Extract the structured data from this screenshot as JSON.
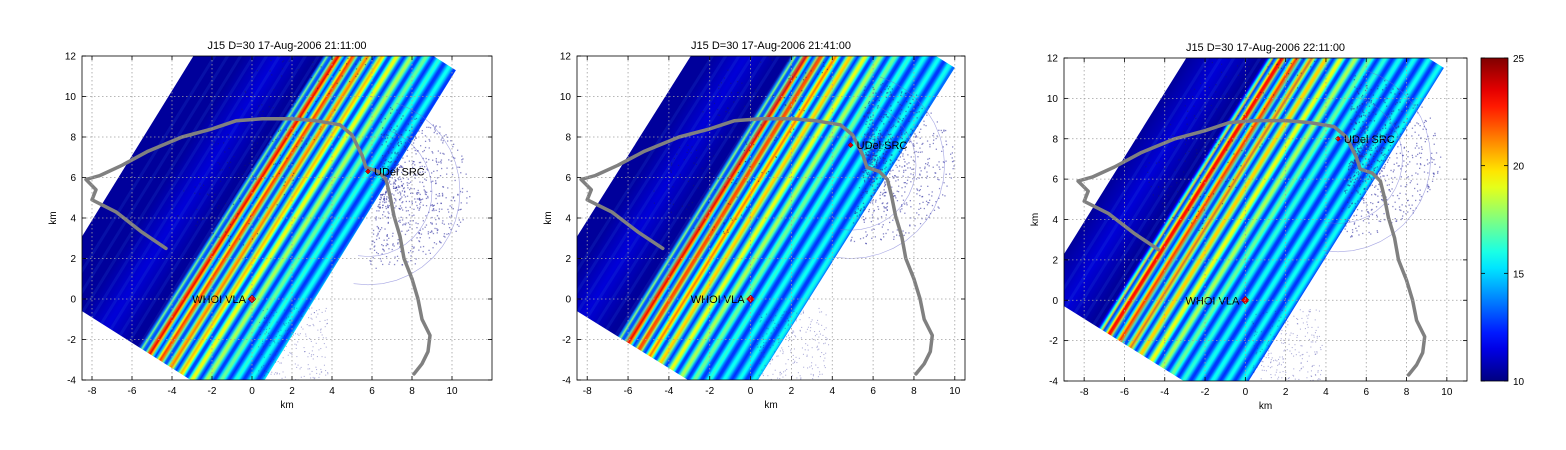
{
  "chart_data": [
    {
      "type": "heatmap",
      "title": "J15 D=30 17-Aug-2006 21:11:00",
      "xlabel": "km",
      "ylabel": "km",
      "xlim": [
        -8.5,
        12
      ],
      "ylim": [
        -4,
        12
      ],
      "xticks": [
        -8,
        -6,
        -4,
        -2,
        0,
        2,
        4,
        6,
        8,
        10
      ],
      "yticks": [
        -4,
        -2,
        0,
        2,
        4,
        6,
        8,
        10,
        12
      ],
      "grid": true,
      "sites": [
        {
          "label": "WHOI VLA",
          "x": 0,
          "y": 0
        },
        {
          "label": "UDel SRC",
          "x": 5.8,
          "y": 6.3
        }
      ],
      "front_offset": 0.0
    },
    {
      "type": "heatmap",
      "title": "J15 D=30 17-Aug-2006 21:41:00",
      "xlabel": "km",
      "ylabel": "km",
      "xlim": [
        -8.5,
        10.5
      ],
      "ylim": [
        -4,
        12
      ],
      "xticks": [
        -8,
        -6,
        -4,
        -2,
        0,
        2,
        4,
        6,
        8,
        10
      ],
      "yticks": [
        -4,
        -2,
        0,
        2,
        4,
        6,
        8,
        10,
        12
      ],
      "grid": true,
      "sites": [
        {
          "label": "WHOI VLA",
          "x": 0,
          "y": 0
        },
        {
          "label": "UDel SRC",
          "x": 4.9,
          "y": 7.6
        }
      ],
      "front_offset": -2.3
    },
    {
      "type": "heatmap",
      "title": "J15 D=30 17-Aug-2006 22:11:00",
      "xlabel": "km",
      "ylabel": "km",
      "xlim": [
        -9,
        11
      ],
      "ylim": [
        -4,
        12
      ],
      "xticks": [
        -8,
        -6,
        -4,
        -2,
        0,
        2,
        4,
        6,
        8,
        10
      ],
      "yticks": [
        -4,
        -2,
        0,
        2,
        4,
        6,
        8,
        10,
        12
      ],
      "grid": true,
      "sites": [
        {
          "label": "WHOI VLA",
          "x": 0,
          "y": 0
        },
        {
          "label": "UDel SRC",
          "x": 4.6,
          "y": 8.0
        }
      ],
      "front_offset": -4.0
    }
  ],
  "colorbar": {
    "min": 10,
    "max": 25,
    "ticks": [
      10,
      15,
      20,
      25
    ],
    "colormap": "jet"
  },
  "coastline": [
    [
      -4.3,
      2.5
    ],
    [
      -5.5,
      3.3
    ],
    [
      -6.8,
      4.3
    ],
    [
      -8.0,
      4.9
    ],
    [
      -7.8,
      5.4
    ],
    [
      -8.3,
      5.9
    ],
    [
      -7.6,
      6.1
    ],
    [
      -6.5,
      6.6
    ],
    [
      -5.2,
      7.3
    ],
    [
      -3.5,
      8.0
    ],
    [
      -2.0,
      8.4
    ],
    [
      -0.8,
      8.8
    ],
    [
      0.5,
      8.9
    ],
    [
      2.0,
      8.9
    ],
    [
      3.2,
      8.8
    ],
    [
      4.4,
      8.6
    ],
    [
      5.0,
      8.1
    ],
    [
      5.5,
      7.1
    ],
    [
      5.7,
      6.5
    ],
    [
      6.3,
      6.3
    ],
    [
      6.7,
      5.9
    ],
    [
      6.9,
      5.1
    ],
    [
      7.1,
      4.1
    ],
    [
      7.4,
      3.1
    ],
    [
      7.6,
      2.0
    ],
    [
      8.0,
      1.0
    ],
    [
      8.3,
      0.0
    ],
    [
      8.5,
      -1.0
    ],
    [
      8.9,
      -1.8
    ],
    [
      8.8,
      -2.6
    ],
    [
      8.5,
      -3.2
    ],
    [
      8.1,
      -3.7
    ]
  ],
  "colors": {
    "coastline": "#808080",
    "grid": "#a0a0a0",
    "site_marker": "#e00000",
    "scatter": "#26269a"
  }
}
